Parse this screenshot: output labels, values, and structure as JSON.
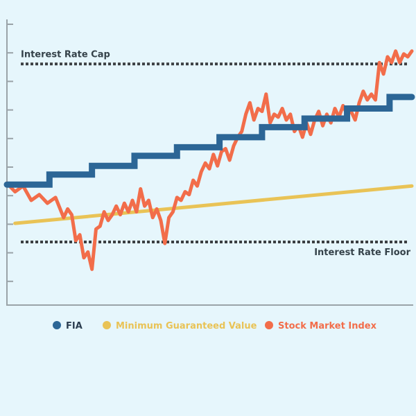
{
  "chart_data": {
    "type": "line",
    "title": "",
    "xlabel": "",
    "ylabel": "",
    "xlim": [
      0,
      100
    ],
    "ylim": [
      0,
      100
    ],
    "grid": false,
    "legend_position": "bottom",
    "reference_lines": [
      {
        "name": "cap",
        "label": "Interest Rate Cap",
        "y": 83.5
      },
      {
        "name": "floor",
        "label": "Interest Rate Floor",
        "y": 21.5
      }
    ],
    "series": [
      {
        "name": "FIA",
        "color": "#2c6696",
        "style": "step",
        "x": [
          0,
          10.5,
          21,
          31.5,
          42,
          52.5,
          63,
          73.5,
          84,
          94.5,
          100
        ],
        "values": [
          41.5,
          45,
          48,
          51.5,
          54.5,
          58,
          61.5,
          64.5,
          68,
          72,
          72
        ]
      },
      {
        "name": "Minimum Guaranteed Value",
        "color": "#e9c356",
        "style": "line",
        "x": [
          2,
          100
        ],
        "values": [
          28,
          41
        ]
      },
      {
        "name": "Stock Market Index",
        "color": "#f26d4a",
        "style": "line",
        "x": [
          0,
          2,
          4,
          6,
          8,
          10,
          12,
          14,
          15,
          16,
          17,
          18,
          19,
          20,
          21,
          22,
          23,
          24,
          25,
          26,
          27,
          28,
          29,
          30,
          31,
          32,
          33,
          34,
          35,
          36,
          37,
          38,
          39,
          40,
          41,
          42,
          43,
          44,
          45,
          46,
          47,
          48,
          49,
          50,
          51,
          52,
          53,
          54,
          55,
          56,
          57,
          58,
          59,
          60,
          61,
          62,
          63,
          64,
          65,
          66,
          67,
          68,
          69,
          70,
          71,
          72,
          73,
          74,
          75,
          76,
          77,
          78,
          79,
          80,
          81,
          82,
          83,
          84,
          85,
          86,
          87,
          88,
          89,
          90,
          91,
          92,
          93,
          94,
          95,
          96,
          97,
          98,
          99,
          100
        ],
        "values": [
          42,
          39,
          41,
          36,
          38,
          35,
          37,
          30,
          33,
          31,
          22,
          24,
          16,
          18,
          12,
          26,
          27,
          32,
          29,
          31,
          34,
          31,
          35,
          32,
          36,
          32,
          40,
          34,
          36,
          30,
          33,
          29,
          21,
          30,
          32,
          37,
          36,
          39,
          38,
          43,
          41,
          46,
          49,
          47,
          52,
          48,
          53,
          54,
          50,
          55,
          58,
          60,
          66,
          70,
          64,
          68,
          67,
          73,
          63,
          66,
          65,
          68,
          64,
          66,
          60,
          62,
          58,
          63,
          59,
          64,
          67,
          62,
          66,
          63,
          68,
          65,
          69,
          66,
          67,
          64,
          70,
          74,
          71,
          73,
          71,
          84,
          80,
          86,
          84,
          88,
          84,
          87,
          86,
          88
        ]
      }
    ]
  }
}
